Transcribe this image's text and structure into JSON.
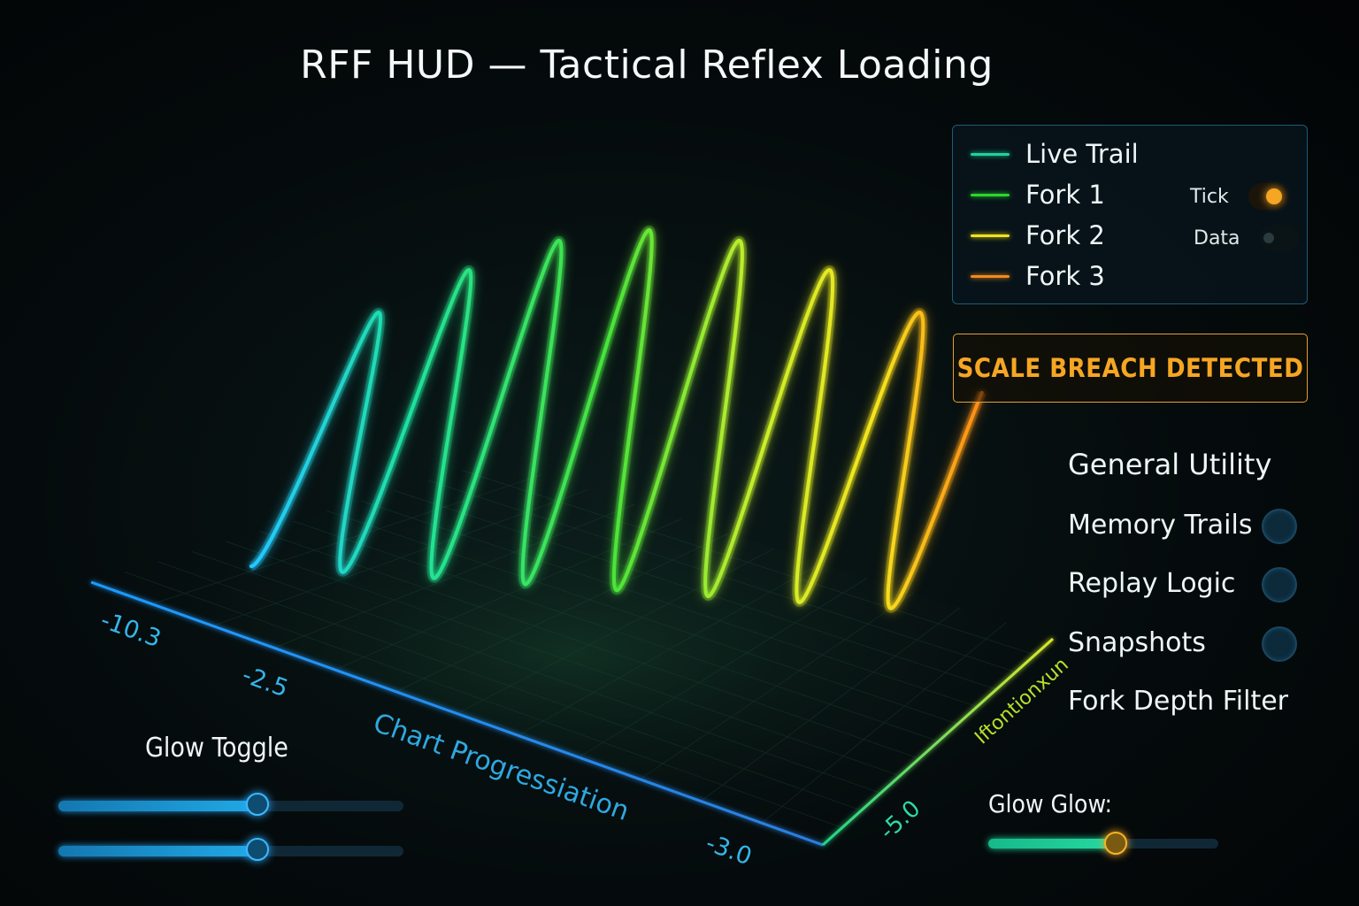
{
  "title": "RFF HUD — Tactical Reflex Loading",
  "legend": {
    "items": [
      {
        "label": "Live Trail",
        "color": "#1fd39a"
      },
      {
        "label": "Fork 1",
        "color": "#2fd42f"
      },
      {
        "label": "Fork 2",
        "color": "#f2e21d"
      },
      {
        "label": "Fork 3",
        "color": "#f08a1c"
      }
    ],
    "toggles": [
      {
        "label": "Tick",
        "on": true,
        "color": "#f5a623"
      },
      {
        "label": "Data",
        "on": false,
        "color": "#2a3a3e"
      }
    ]
  },
  "alert": {
    "text": "SCALE BREACH DETECTED",
    "color": "#f5a623"
  },
  "utility": {
    "heading": "General Utility",
    "items": [
      {
        "label": "Memory Trails"
      },
      {
        "label": "Replay Logic"
      },
      {
        "label": "Snapshots"
      },
      {
        "label": "Fork Depth Filter"
      }
    ]
  },
  "axes": {
    "x_ticks": [
      "-10.3",
      "-2.5",
      "-3.0"
    ],
    "x_label": "Chart Progressiation",
    "z_label": "Iftontionxun",
    "z_tick": "-5.0"
  },
  "glow_toggle": {
    "label": "Glow Toggle",
    "sliders": [
      {
        "value": 0.58
      },
      {
        "value": 0.58
      }
    ]
  },
  "glow_glow": {
    "label": "Glow Glow:",
    "value": 0.55
  }
}
